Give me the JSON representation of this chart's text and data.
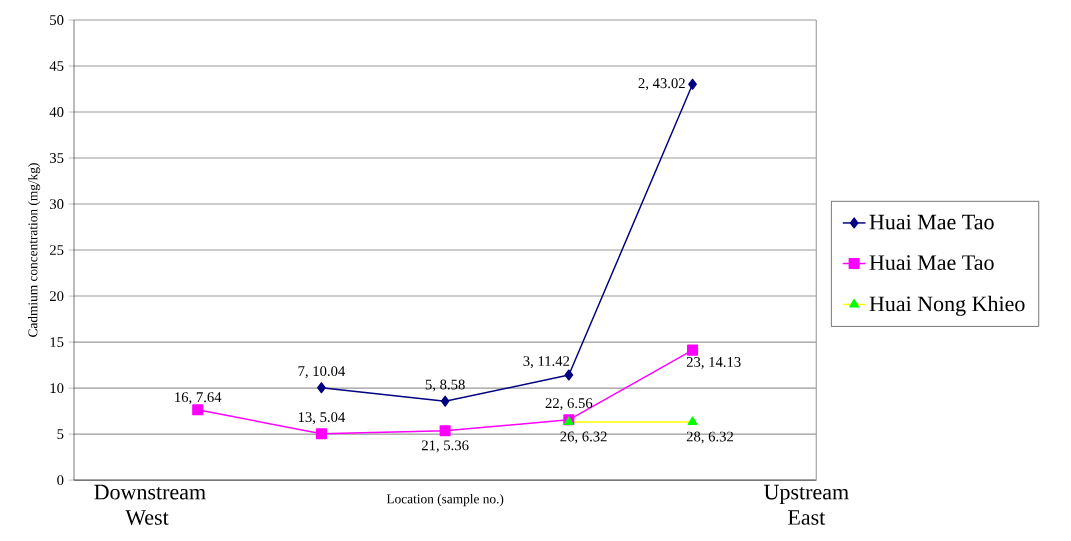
{
  "chart_data": {
    "type": "line",
    "xlabel": "Location (sample no.)",
    "ylabel": "Cadmium concentration (mg/kg)",
    "categories": [
      null,
      null,
      null,
      null,
      null
    ],
    "ylim": [
      0,
      50
    ],
    "yticks": [
      0,
      5,
      10,
      15,
      20,
      25,
      30,
      35,
      40,
      45,
      50
    ],
    "grid": "y",
    "legend": "right",
    "annotations": [
      "Downstream West",
      "Upstream East"
    ],
    "series": [
      {
        "name": "Huai Mae Tao",
        "color": "#000080",
        "marker": "diamond",
        "values": [
          null,
          10.04,
          8.58,
          11.42,
          43.02
        ],
        "value_labels": [
          null,
          "7, 10.04",
          "5, 8.58",
          "3, 11.42",
          "2, 43.02"
        ]
      },
      {
        "name": "Huai Mae Tao",
        "color": "#ff00ff",
        "marker": "square",
        "values": [
          7.64,
          5.04,
          5.36,
          6.56,
          14.13
        ],
        "value_labels": [
          "16, 7.64",
          "13, 5.04",
          "21, 5.36",
          "22, 6.56",
          "23, 14.13"
        ]
      },
      {
        "name": "Huai Nong Khieo",
        "color": "#ffff00",
        "colors": [
          "#00ff00",
          "#00ff00",
          "#00ff00",
          "#00ff00",
          "#00ff00"
        ],
        "marker": "triangle",
        "values": [
          null,
          null,
          null,
          6.32,
          6.32
        ],
        "value_labels": [
          null,
          null,
          null,
          "26, 6.32",
          "28, 6.32"
        ]
      }
    ]
  }
}
